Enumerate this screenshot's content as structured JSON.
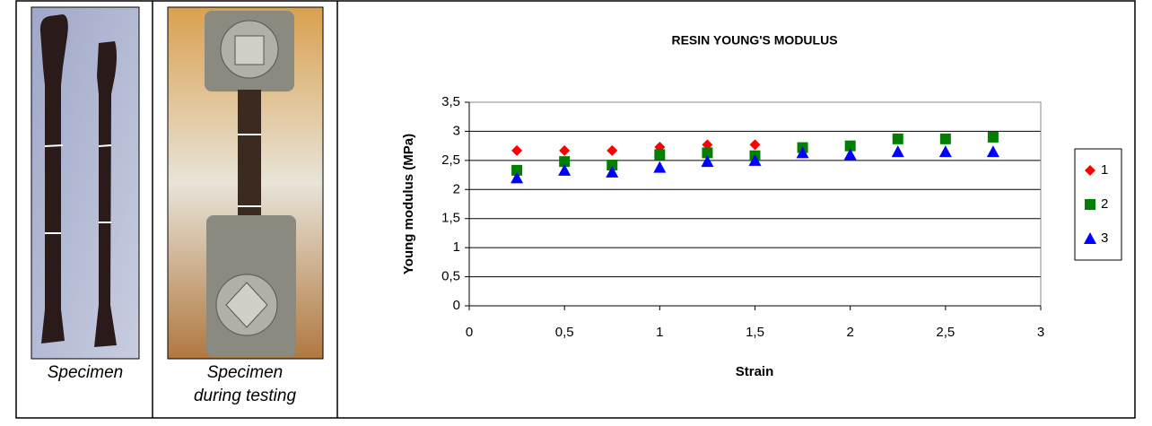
{
  "captions": [
    "Specimen",
    "Specimen during testing"
  ],
  "chart_data": {
    "type": "scatter",
    "title": "RESIN YOUNG'S MODULUS",
    "x_label": "Strain",
    "y_label": "Young modulus (MPa)",
    "xlim": [
      0,
      3
    ],
    "ylim": [
      0,
      3.5
    ],
    "xticks": [
      0,
      {
        "value": 0.5,
        "label": "0,5"
      },
      1,
      {
        "value": 1.5,
        "label": "1,5"
      },
      2,
      {
        "value": 2.5,
        "label": "2,5"
      },
      3
    ],
    "yticks": [
      0,
      {
        "value": 0.5,
        "label": "0,5"
      },
      1,
      {
        "value": 1.5,
        "label": "1,5"
      },
      2,
      {
        "value": 2.5,
        "label": "2,5"
      },
      3,
      {
        "value": 3.5,
        "label": "3,5"
      }
    ],
    "grid": true,
    "legend": "right",
    "series": [
      {
        "name": "1",
        "color": "#ff0000",
        "marker": "diamond",
        "x": [
          0.25,
          0.5,
          0.75,
          1,
          1.25,
          1.5
        ],
        "values": [
          2.67,
          2.67,
          2.67,
          2.73,
          2.77,
          2.77
        ]
      },
      {
        "name": "2",
        "color": "#008000",
        "marker": "square",
        "x": [
          0.25,
          0.5,
          0.75,
          1,
          1.25,
          1.5,
          1.75,
          2,
          2.25,
          2.5,
          2.75
        ],
        "values": [
          2.33,
          2.48,
          2.42,
          2.6,
          2.63,
          2.58,
          2.72,
          2.75,
          2.87,
          2.87,
          2.9
        ]
      },
      {
        "name": "3",
        "color": "#0000ff",
        "marker": "triangle",
        "x": [
          0.25,
          0.5,
          0.75,
          1,
          1.25,
          1.5,
          1.75,
          2,
          2.25,
          2.5,
          2.75
        ],
        "values": [
          2.2,
          2.33,
          2.3,
          2.38,
          2.48,
          2.5,
          2.63,
          2.6,
          2.65,
          2.65,
          2.65
        ]
      }
    ]
  }
}
